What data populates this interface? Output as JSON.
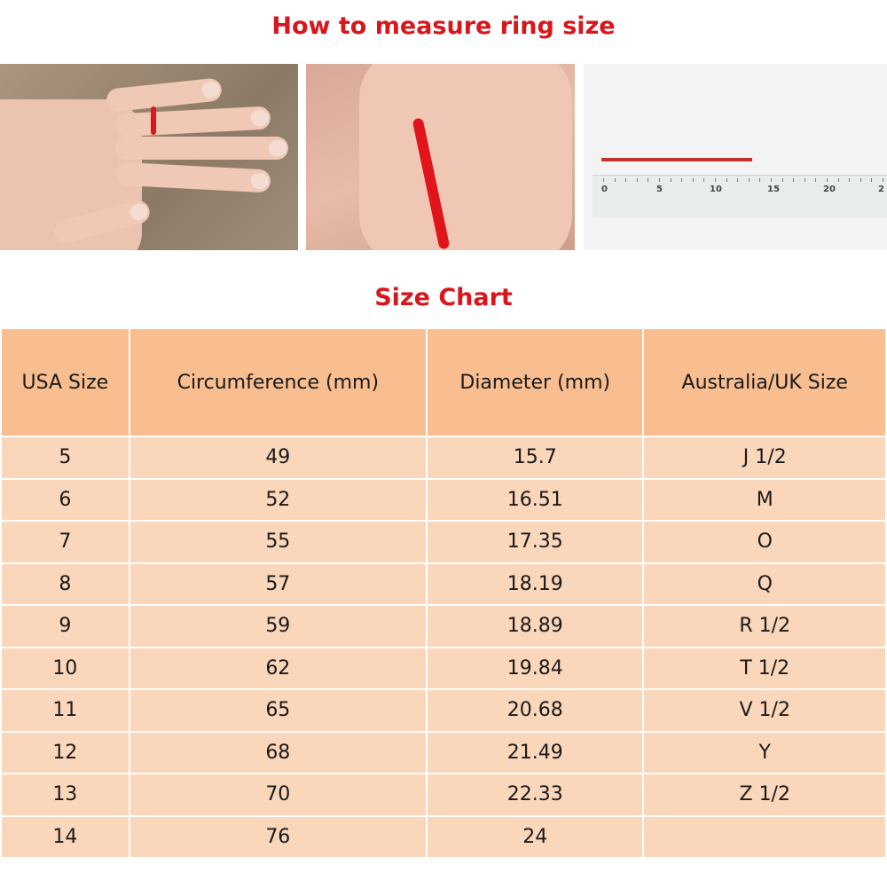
{
  "header": {
    "title": "How to measure ring size"
  },
  "photos": {
    "ruler_labels": [
      "0",
      "5",
      "10",
      "15",
      "20",
      "2"
    ]
  },
  "chart_title": "Size Chart",
  "colors": {
    "title": "#d8161c",
    "header_bg": "#f8be90",
    "row_bg": "#fad6bb",
    "string": "#e0141a"
  },
  "table": {
    "columns": [
      "USA Size",
      "Circumference (mm)",
      "Diameter (mm)",
      "Australia/UK Size"
    ],
    "rows": [
      [
        "5",
        "49",
        "15.7",
        "J 1/2"
      ],
      [
        "6",
        "52",
        "16.51",
        "M"
      ],
      [
        "7",
        "55",
        "17.35",
        "O"
      ],
      [
        "8",
        "57",
        "18.19",
        "Q"
      ],
      [
        "9",
        "59",
        "18.89",
        "R 1/2"
      ],
      [
        "10",
        "62",
        "19.84",
        "T 1/2"
      ],
      [
        "11",
        "65",
        "20.68",
        "V 1/2"
      ],
      [
        "12",
        "68",
        "21.49",
        "Y"
      ],
      [
        "13",
        "70",
        "22.33",
        "Z 1/2"
      ],
      [
        "14",
        "76",
        "24",
        ""
      ]
    ]
  }
}
